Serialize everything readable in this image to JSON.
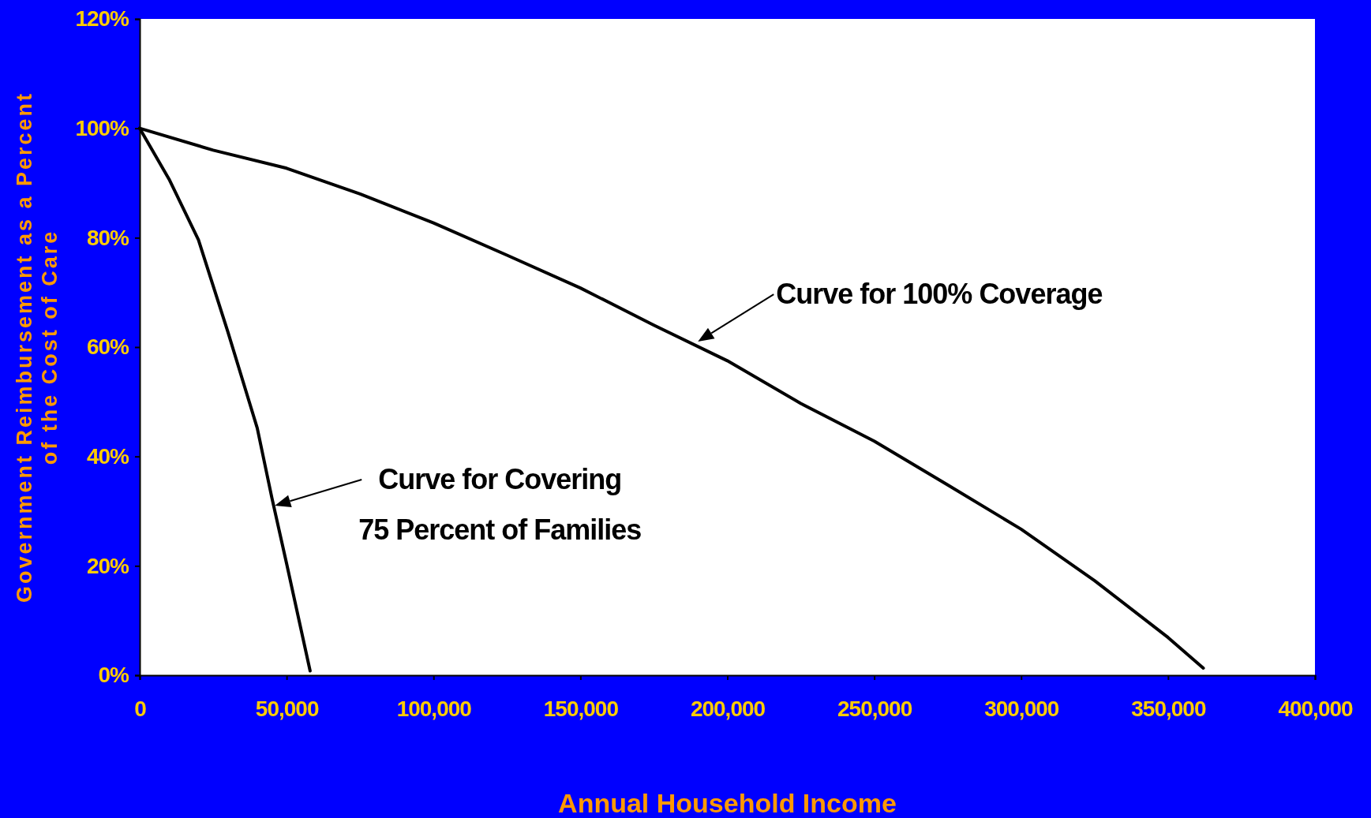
{
  "chart_data": {
    "type": "line",
    "xlabel": "Annual Household Income",
    "ylabel": "Government Reimbursement as a Percent\nof the Cost of Care",
    "xlim": [
      0,
      400000
    ],
    "xticks": [
      0,
      {
        "value": 50000,
        "label": "50,000"
      },
      {
        "value": 100000,
        "label": "100,000"
      },
      {
        "value": 150000,
        "label": "150,000"
      },
      {
        "value": 200000,
        "label": "200,000"
      },
      {
        "value": 250000,
        "label": "250,000"
      },
      {
        "value": 300000,
        "label": "300,000"
      },
      {
        "value": 350000,
        "label": "350,000"
      },
      {
        "value": 400000,
        "label": "400,000"
      }
    ],
    "ylim": [
      0,
      120
    ],
    "yticks": [
      {
        "value": 0,
        "label": "0%"
      },
      {
        "value": 20,
        "label": "20%"
      },
      {
        "value": 40,
        "label": "40%"
      },
      {
        "value": 60,
        "label": "60%"
      },
      {
        "value": 80,
        "label": "80%"
      },
      {
        "value": 100,
        "label": "100%"
      },
      {
        "value": 120,
        "label": "120%"
      }
    ],
    "series": [
      {
        "color": "#000000",
        "x": [
          0,
          25000,
          50000,
          75000,
          100000,
          125000,
          150000,
          175000,
          200000,
          225000,
          250000,
          275000,
          300000,
          325000,
          350000,
          362000
        ],
        "values": [
          100,
          96,
          92.7,
          88,
          82.7,
          76.8,
          70.8,
          64,
          57.5,
          49.7,
          42.8,
          34.8,
          26.7,
          17.3,
          6.9,
          1.3
        ]
      },
      {
        "color": "#000000",
        "x": [
          0,
          10000,
          20000,
          30000,
          40000,
          45000,
          50000,
          58000
        ],
        "values": [
          100,
          90.7,
          79.6,
          62.8,
          45.2,
          32.4,
          20.4,
          0.8
        ]
      }
    ],
    "annotations": [
      {
        "text": "Curve for 100% Coverage",
        "x": 190000,
        "y": 61
      },
      {
        "text": "Curve for Covering\n75 Percent of Families",
        "x": 46000,
        "y": 31
      }
    ],
    "grid": false,
    "marker": "none",
    "line_style": "solid"
  }
}
